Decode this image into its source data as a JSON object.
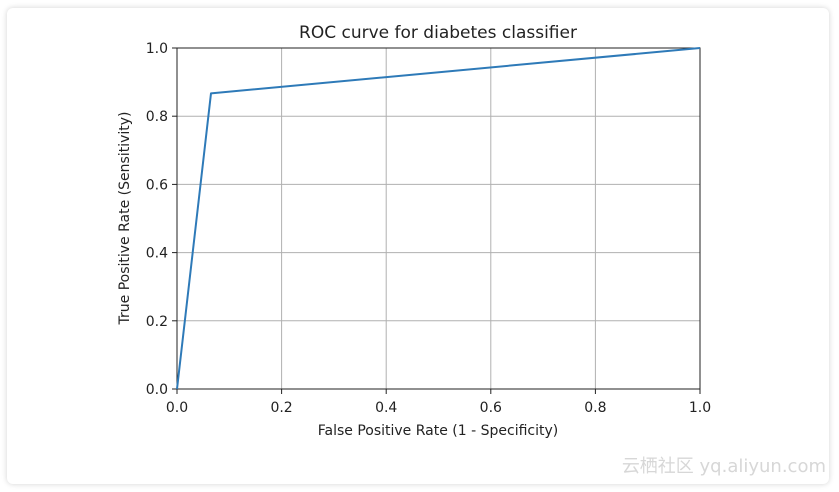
{
  "chart_data": {
    "type": "line",
    "title": "ROC curve for diabetes classifier",
    "xlabel": "False Positive Rate (1 - Specificity)",
    "ylabel": "True Positive Rate (Sensitivity)",
    "xlim": [
      0.0,
      1.0
    ],
    "ylim": [
      0.0,
      1.0
    ],
    "xticks": [
      "0.0",
      "0.2",
      "0.4",
      "0.6",
      "0.8",
      "1.0"
    ],
    "yticks": [
      "0.0",
      "0.2",
      "0.4",
      "0.6",
      "0.8",
      "1.0"
    ],
    "grid": true,
    "series": [
      {
        "name": "ROC",
        "x": [
          0.0,
          0.065,
          1.0
        ],
        "y": [
          0.0,
          0.867,
          1.0
        ],
        "color": "#2e7ab8"
      }
    ]
  },
  "watermark": "云栖社区 yq.aliyun.com"
}
